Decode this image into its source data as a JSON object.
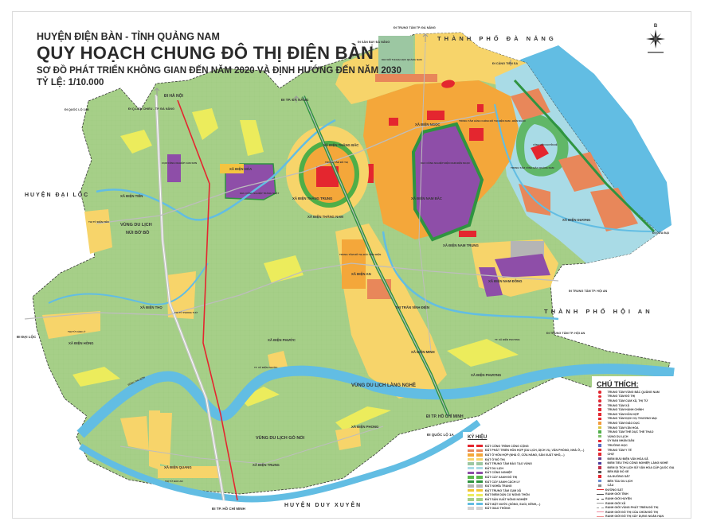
{
  "header": {
    "district": "HUYỆN ĐIỆN BÀN - TỈNH QUẢNG NAM",
    "title": "QUY HOẠCH CHUNG ĐÔ THỊ ĐIỆN BÀN",
    "subtitle": "SƠ ĐỒ PHÁT TRIỂN KHÔNG GIAN ĐẾN NĂM 2020 VÀ ĐỊNH HƯỚNG ĐẾN NĂM 2030",
    "scale": "TỶ LỆ: 1/10.000"
  },
  "compass": {
    "north_letter": "B"
  },
  "colors": {
    "agriculture": "#a6cf88",
    "water": "#62bde3",
    "urban_residential": "#f7d46a",
    "mixed_residential": "#f4a73a",
    "mixed_development": "#e8875a",
    "public": "#e4262f",
    "industrial": "#8e4ea8",
    "tourism": "#a9dbe6",
    "green": "#4fae48",
    "rural_settlement": "#ecec5c",
    "railway": "#e4262f"
  },
  "map": {
    "regions": [
      "THÀNH PHỐ ĐÀ NẴNG",
      "THÀNH PHỐ HỘI AN",
      "HUYỆN ĐẠI LỘC",
      "HUYỆN DUY XUYÊN"
    ],
    "directions": [
      "ĐI HÀ NỘI",
      "ĐI QUỐC LỘ 14B",
      "ĐI Q.LIÊN CHIỂU - TP. ĐÀ NẴNG",
      "ĐI TP. ĐÀ NẴNG",
      "ĐI TRUNG TÂM TP. ĐÀ NẴNG",
      "ĐI SÂN BAY ĐÀ NẴNG",
      "ĐI CẢNG TIÊN SA",
      "ĐI CỬA ĐẠI",
      "ĐI TRUNG TÂM TP. HỘI AN",
      "ĐI TRUNG TÂM TP. HỘI AN",
      "ĐI TP. HỒ CHÍ MINH",
      "ĐI TP. HỒ CHÍ MINH",
      "ĐI QUỐC LỘ 1A",
      "ĐI ĐẠI LỘC"
    ],
    "places": [
      "XÃ ĐIỆN HÒA",
      "XÃ ĐIỆN TIẾN",
      "VÙNG DU LỊCH",
      "NÚI BỜ BỒ",
      "THỊ TỨ ĐIỆN TIẾN",
      "CỤM CÔNG NGHIỆP CẨM SƠN",
      "KHU CÔNG NGHIỆP TRẢNG NHẬT",
      "XÃ ĐIỆN THẮNG BẮC",
      "XÃ ĐIỆN THẮNG TRUNG",
      "XÃ ĐIỆN THẮNG NAM",
      "TRUNG TÂM ĐÔ THỊ",
      "XÃ ĐIỆN NGỌC",
      "KHU CÔNG NGHIỆP ĐIỆN NAM ĐIỆN NGỌC",
      "XÃ ĐIỆN NAM BẮC",
      "TRUNG TÂM HÀNH CHÍNH ĐÔ THỊ ĐIỆN NAM - ĐIỆN NGỌC",
      "TRUNG TÂM VÙNG BẮC QUẢNG NAM",
      "XÃ ĐIỆN DƯƠNG",
      "KHU ĐÔ THỊ ĐẠI HỌC QUẢNG NAM",
      "XÃ ĐIỆN NAM TRUNG",
      "XÃ ĐIỆN NAM ĐÔNG",
      "TRUNG TÂM ĐÔ THỊ BẮC VĨNH ĐIỆN",
      "XÃ ĐIỆN AN",
      "THỊ TRẤN VĨNH ĐIỆN",
      "XÃ ĐIỆN MINH",
      "TT. XÃ ĐIỆN PHƯƠNG",
      "XÃ ĐIỆN PHƯƠNG",
      "VÙNG DU LỊCH LÀNG NGHỀ",
      "XÃ ĐIỆN THỌ",
      "THỊ TỨ PHONG THỬ",
      "XÃ ĐIỆN HỒNG",
      "THỊ TỨ CẨM LÝ",
      "XÃ ĐIỆN PHƯỚC",
      "TT. XÃ ĐIỆN PHƯỚC",
      "VÙNG DU LỊCH GÒ NỔI",
      "XÃ ĐIỆN QUANG",
      "THỊ TỨ BẢO AN",
      "XÃ ĐIỆN TRUNG",
      "XÃ ĐIỆN PHONG",
      "SÔNG THU BỒN",
      "CÔNG VIÊN CHUYÊN ĐỀ"
    ]
  },
  "legend_ky_hieu": {
    "title": "KÝ HIỆU",
    "items": [
      {
        "label": "ĐẤT CÔNG TRÌNH CÔNG CỘNG",
        "color": "#e4262f"
      },
      {
        "label": "ĐẤT PHÁT TRIỂN HỖN HỢP (DU LỊCH, DỊCH VỤ, VĂN PHÒNG, NHÀ Ở,...)",
        "color": "#e8875a"
      },
      {
        "label": "ĐẤT Ở HỖN HỢP (NHÀ Ở, CỬA HÀNG, SẢN XUẤT NHỎ,...)",
        "color": "#f4a73a"
      },
      {
        "label": "ĐẤT Ở ĐÔ THỊ",
        "color": "#f7d46a"
      },
      {
        "label": "ĐẤT TRUNG TÂM ĐÀO TẠO VÙNG",
        "color": "#9cc7a2"
      },
      {
        "label": "ĐẤT DU LỊCH",
        "color": "#a9dbe6"
      },
      {
        "label": "ĐẤT CÔNG NGHIỆP",
        "color": "#8e4ea8"
      },
      {
        "label": "ĐẤT CÂY XANH ĐÔ THỊ",
        "color": "#5cb84c"
      },
      {
        "label": "ĐẤT CÂY XANH CÁCH LY",
        "color": "#2f9440"
      },
      {
        "label": "ĐẤT NGHĨA TRANG",
        "color": "#b5b5b5"
      },
      {
        "label": "ĐẤT TRUNG TÂM CỤM XÃ",
        "color": "#f2c531"
      },
      {
        "label": "ĐẤT ĐIỂM DÂN CƯ NÔNG THÔN",
        "color": "#ecec5c"
      },
      {
        "label": "ĐẤT SẢN XUẤT NÔNG NGHIỆP",
        "color": "#a6cf88"
      },
      {
        "label": "ĐẤT MẶT NƯỚC (SÔNG, SUỐI, KÊNH,...)",
        "color": "#62bde3"
      },
      {
        "label": "ĐẤT GIAO THÔNG",
        "color": "#d2d2d2"
      }
    ]
  },
  "legend_chu_thich": {
    "title": "CHÚ THÍCH:",
    "items": [
      {
        "label": "TRUNG TÂM VÙNG BẮC QUẢNG NAM",
        "icon": "regional-center-icon"
      },
      {
        "label": "TRUNG TÂM ĐÔ THỊ",
        "icon": "urban-center-icon"
      },
      {
        "label": "TRUNG TÂM CỤM XÃ, THỊ TỨ",
        "icon": "commune-cluster-center-icon"
      },
      {
        "label": "TRUNG TÂM XÃ",
        "icon": "commune-center-icon"
      },
      {
        "label": "TRUNG TÂM HÀNH CHÍNH",
        "icon": "administrative-center-icon"
      },
      {
        "label": "TRUNG TÂM HỖN HỢP",
        "icon": "mixed-center-icon"
      },
      {
        "label": "TRUNG TÂM DỊCH VỤ THƯƠNG MẠI",
        "icon": "commercial-center-icon"
      },
      {
        "label": "TRUNG TÂM GIÁO DỤC",
        "icon": "education-center-icon"
      },
      {
        "label": "TRUNG TÂM VĂN HÓA",
        "icon": "culture-center-icon"
      },
      {
        "label": "TRUNG TÂM THỂ DỤC THỂ THAO",
        "icon": "sports-center-icon"
      },
      {
        "label": "VÙNG DU LỊCH",
        "icon": "tourism-zone-icon"
      },
      {
        "label": "ỦY BAN NHÂN DÂN",
        "icon": "peoples-committee-icon"
      },
      {
        "label": "TRƯỜNG HỌC",
        "icon": "school-icon"
      },
      {
        "label": "TRUNG TÂM Y TẾ",
        "icon": "health-center-icon"
      },
      {
        "label": "CHỢ",
        "icon": "market-icon"
      },
      {
        "label": "ĐIỂM BƯU ĐIỆN VĂN HÓA XÃ",
        "icon": "post-office-icon"
      },
      {
        "label": "ĐIỂM TIỂU THỦ CÔNG NGHIỆP, LÀNG NGHỀ",
        "icon": "craft-village-icon"
      },
      {
        "label": "ĐIỂM DI TÍCH LỊCH SỬ VĂN HÓA CẤP QUỐC GIA",
        "icon": "historic-site-icon"
      },
      {
        "label": "BẾN BÃI ĐỖ XE",
        "icon": "parking-icon"
      },
      {
        "label": "GA ĐƯỜNG SẮT",
        "icon": "railway-station-icon"
      },
      {
        "label": "BẾN TÀU DU LỊCH",
        "icon": "tourist-pier-icon"
      },
      {
        "label": "CẦU",
        "icon": "bridge-icon"
      },
      {
        "label": "ĐƯỜNG SẮT",
        "icon": "railway-line-icon"
      },
      {
        "label": "RANH GIỚI TỈNH",
        "icon": "province-boundary-icon"
      },
      {
        "label": "RANH GIỚI HUYỆN",
        "icon": "district-boundary-icon"
      },
      {
        "label": "RANH GIỚI XÃ",
        "icon": "commune-boundary-icon"
      },
      {
        "label": "RANH GIỚI VÙNG PHÁT TRIỂN ĐÔ THỊ",
        "icon": "urban-development-boundary-icon"
      },
      {
        "label": "RANH GIỚI ĐÔ THỊ CỦA CHÙM ĐÔ THỊ",
        "icon": "urban-cluster-boundary-icon"
      },
      {
        "label": "RANH GIỚI ĐÔ THỊ XÂY DỰNG NGẮN HẠN",
        "icon": "short-term-urban-boundary-icon"
      }
    ]
  }
}
